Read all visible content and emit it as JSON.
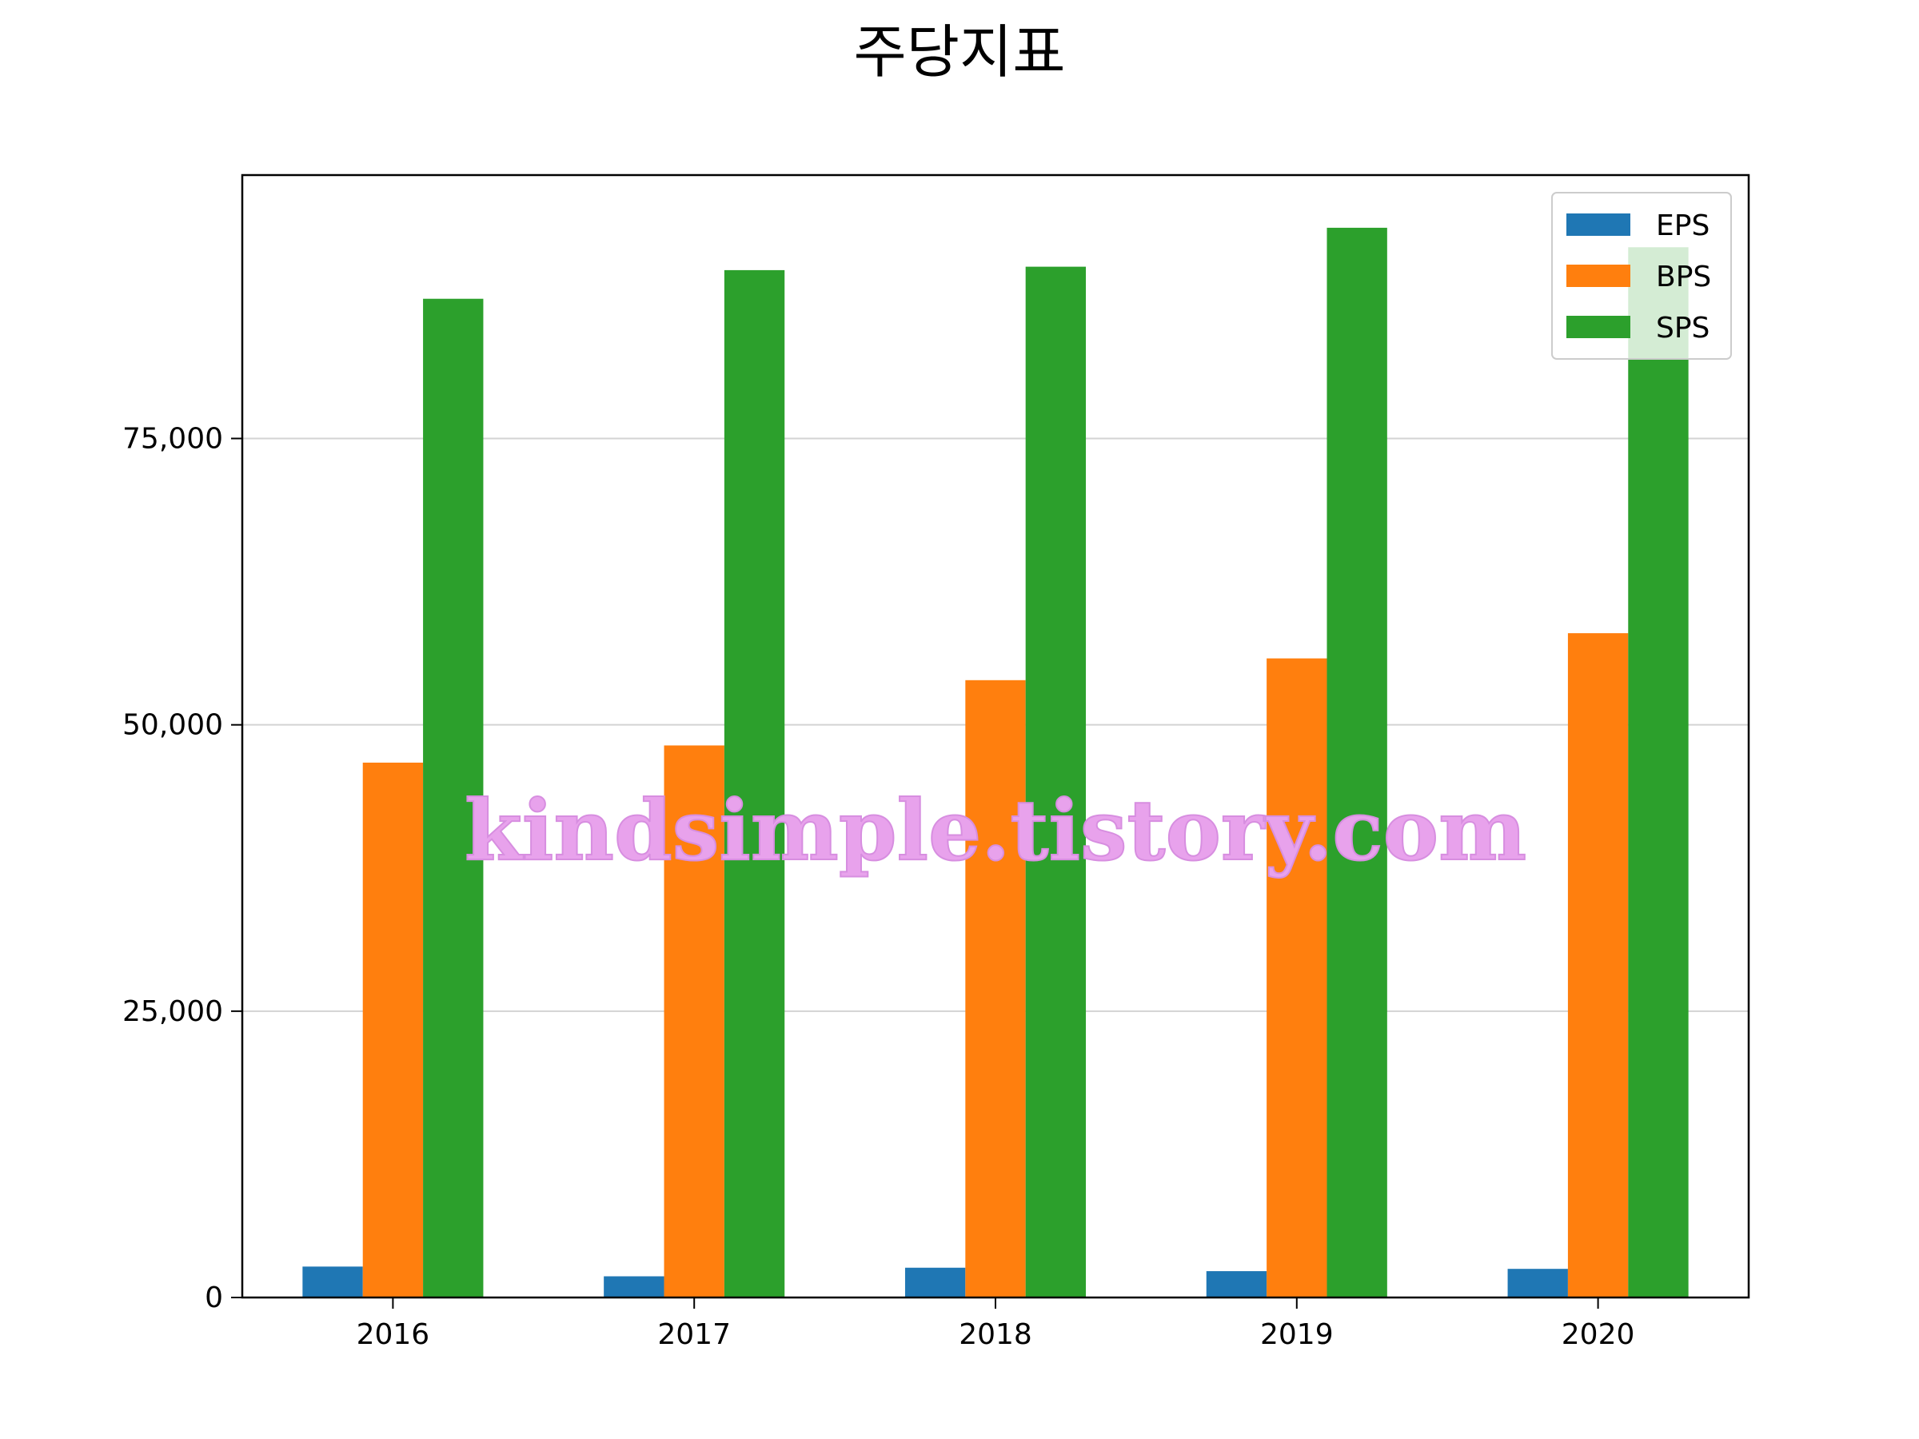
{
  "chart_data": {
    "type": "bar",
    "title": "주당지표",
    "xlabel": "",
    "ylabel": "",
    "categories": [
      "2016",
      "2017",
      "2018",
      "2019",
      "2020"
    ],
    "series": [
      {
        "name": "EPS",
        "color": "#1f77b4",
        "values": [
          2700,
          1850,
          2600,
          2300,
          2500
        ]
      },
      {
        "name": "BPS",
        "color": "#ff7f0e",
        "values": [
          46700,
          48200,
          53900,
          55800,
          58000
        ]
      },
      {
        "name": "SPS",
        "color": "#2ca02c",
        "values": [
          87200,
          89700,
          90000,
          93400,
          91700
        ]
      }
    ],
    "ylim": [
      0,
      98000
    ],
    "yticks": [
      0,
      25000,
      50000,
      75000
    ],
    "ytick_labels": [
      "0",
      "25,000",
      "50,000",
      "75,000"
    ],
    "grid": "y",
    "legend_position": "top-right"
  },
  "watermark": "kindsimple.tistory.com"
}
